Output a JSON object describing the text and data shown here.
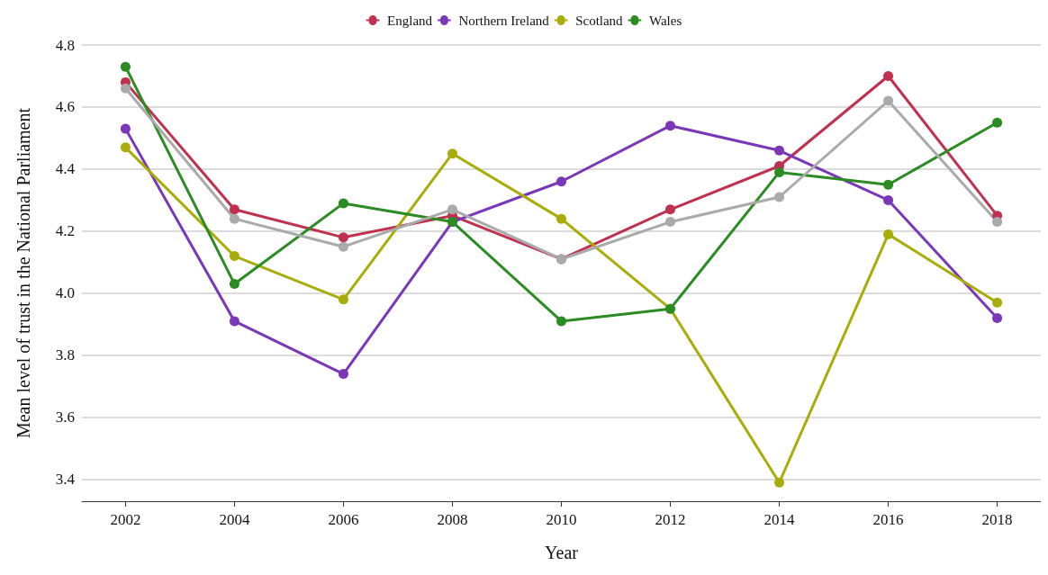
{
  "chart_data": {
    "type": "line",
    "xlabel": "Year",
    "ylabel": "Mean level of trust in the National Parliament",
    "x": [
      2002,
      2004,
      2006,
      2008,
      2010,
      2012,
      2014,
      2016,
      2018
    ],
    "xlim": [
      2001.2,
      2018.8
    ],
    "xticks": [
      2002,
      2004,
      2006,
      2008,
      2010,
      2012,
      2014,
      2016,
      2018
    ],
    "ylim": [
      3.33,
      4.8
    ],
    "yticks": [
      3.4,
      3.6,
      3.8,
      {
        "value": 4,
        "label": "4.0"
      },
      4.2,
      4.4,
      4.6,
      4.8
    ],
    "grid": "y",
    "legend": "top",
    "marker": "circle",
    "line_style": "solid",
    "series": [
      {
        "name": "England",
        "color": "#c0304f",
        "values": [
          4.68,
          4.27,
          4.18,
          4.25,
          4.11,
          4.27,
          4.41,
          4.7,
          4.25
        ]
      },
      {
        "name": "Northern Ireland",
        "color": "#7a38b8",
        "values": [
          4.53,
          3.91,
          3.74,
          4.23,
          4.36,
          4.54,
          4.46,
          4.3,
          3.92
        ]
      },
      {
        "name": "Scotland",
        "color": "#a8ad0a",
        "values": [
          4.47,
          4.12,
          3.98,
          4.45,
          4.24,
          3.95,
          3.39,
          4.19,
          3.97
        ]
      },
      {
        "name": "Wales",
        "color": "#2a8c22",
        "values": [
          4.73,
          4.03,
          4.29,
          4.23,
          3.91,
          3.95,
          4.39,
          4.35,
          4.55
        ]
      },
      {
        "color": "#aaaaaa",
        "values": [
          4.66,
          4.24,
          4.15,
          4.27,
          4.11,
          4.23,
          4.31,
          4.62,
          4.23
        ]
      }
    ]
  }
}
